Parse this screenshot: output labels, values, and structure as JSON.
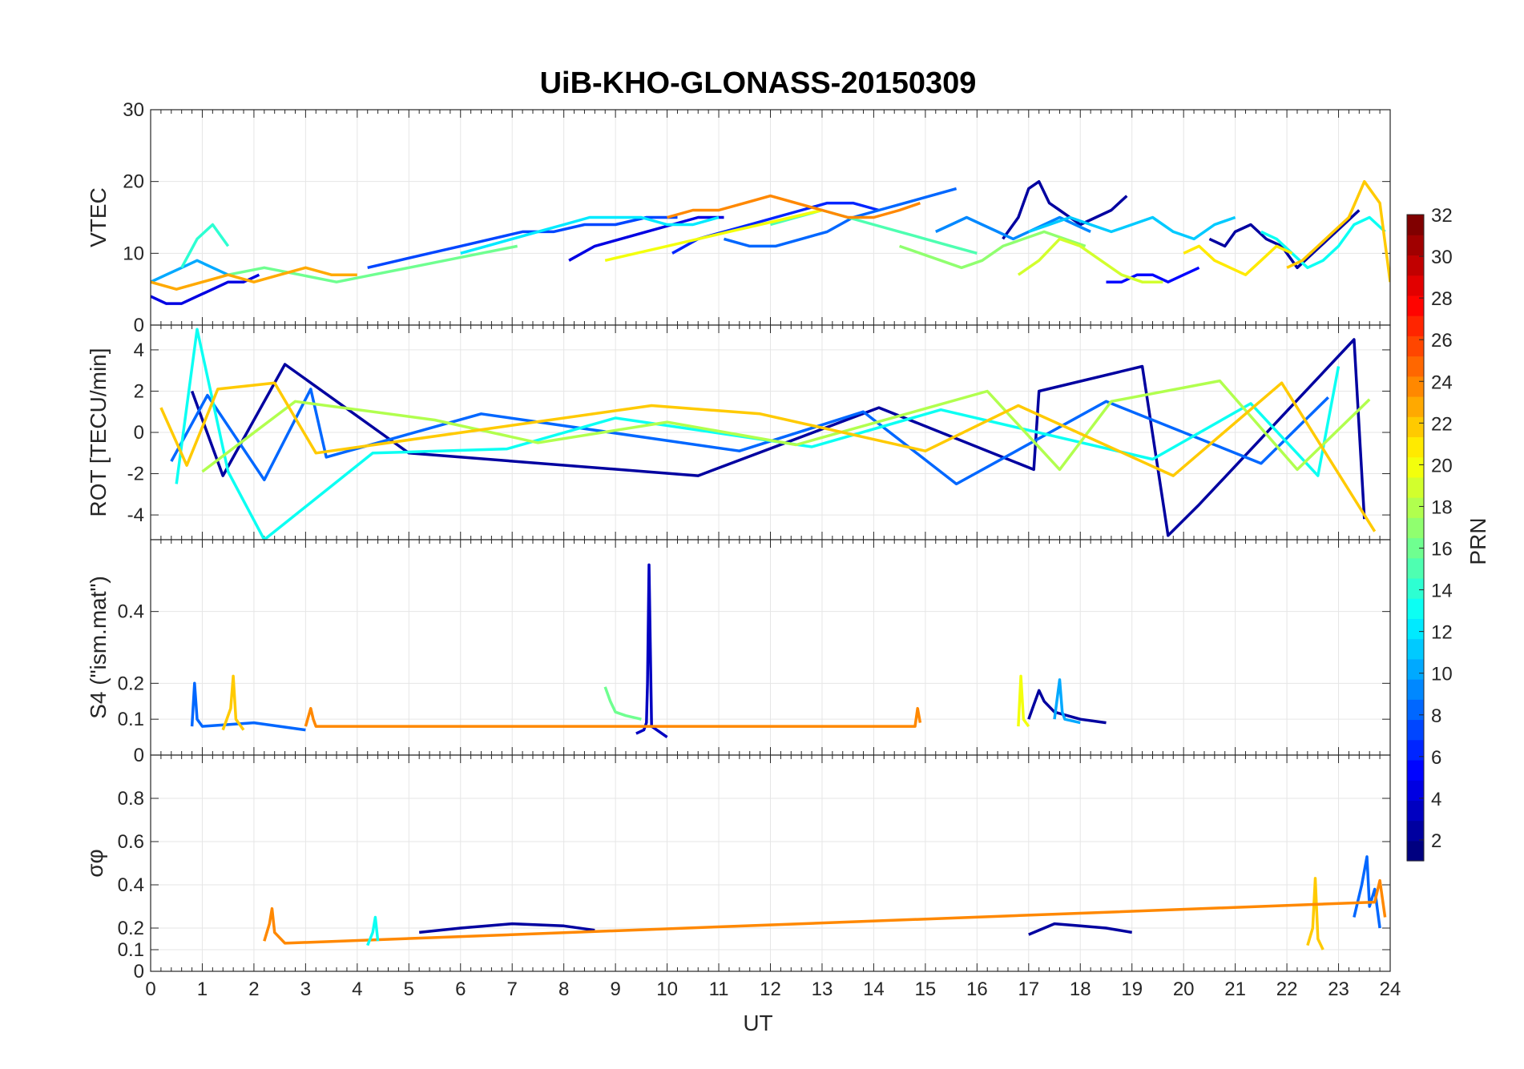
{
  "chart_data": {
    "type": "line",
    "title": "UiB-KHO-GLONASS-20150309",
    "xlabel": "UT",
    "xlim": [
      0,
      24
    ],
    "x_ticks": [
      "0",
      "1",
      "2",
      "3",
      "4",
      "5",
      "6",
      "7",
      "8",
      "9",
      "10",
      "11",
      "12",
      "13",
      "14",
      "15",
      "16",
      "17",
      "18",
      "19",
      "20",
      "21",
      "22",
      "23",
      "24"
    ],
    "grid": true,
    "colormap": "jet",
    "panels": [
      {
        "id": "vtec",
        "ylabel": "VTEC",
        "ylim": [
          0,
          30
        ],
        "y_ticks": [
          "0",
          "10",
          "20",
          "30"
        ],
        "series": [
          {
            "prn": 2,
            "x": [
              16.5,
              16.8,
              17.0,
              17.2,
              17.4,
              17.6,
              17.8,
              18.0,
              18.3,
              18.6,
              18.9
            ],
            "y": [
              12,
              15,
              19,
              20,
              17,
              16,
              15,
              14,
              15,
              16,
              18
            ]
          },
          {
            "prn": 2,
            "x": [
              20.5,
              20.8,
              21.0,
              21.3,
              21.6,
              21.9,
              22.2,
              22.5,
              22.8,
              23.1,
              23.4
            ],
            "y": [
              12,
              11,
              13,
              14,
              12,
              11,
              8,
              10,
              12,
              14,
              16
            ]
          },
          {
            "prn": 4,
            "x": [
              0,
              0.3,
              0.6,
              0.9,
              1.2,
              1.5,
              1.8,
              2.1
            ],
            "y": [
              4,
              3,
              3,
              4,
              5,
              6,
              6,
              7
            ]
          },
          {
            "prn": 4,
            "x": [
              8.1,
              8.6,
              9.1,
              9.6,
              10.1,
              10.6,
              11.1
            ],
            "y": [
              9,
              11,
              12,
              13,
              14,
              15,
              15
            ]
          },
          {
            "prn": 5,
            "x": [
              18.5,
              18.8,
              19.1,
              19.4,
              19.7,
              20.0,
              20.3
            ],
            "y": [
              6,
              6,
              7,
              7,
              6,
              7,
              8
            ]
          },
          {
            "prn": 6,
            "x": [
              10.1,
              10.6,
              11.1,
              11.6,
              12.1,
              12.6,
              13.1,
              13.6,
              14.1
            ],
            "y": [
              10,
              12,
              13,
              14,
              15,
              16,
              17,
              17,
              16
            ]
          },
          {
            "prn": 7,
            "x": [
              4.2,
              4.8,
              5.4,
              6.0,
              6.6,
              7.2,
              7.8,
              8.4,
              9.0,
              9.6,
              10.2
            ],
            "y": [
              8,
              9,
              10,
              11,
              12,
              13,
              13,
              14,
              14,
              15,
              15
            ]
          },
          {
            "prn": 8,
            "x": [
              11.1,
              11.6,
              12.1,
              12.6,
              13.1,
              13.6,
              14.1,
              14.6,
              15.1,
              15.6
            ],
            "y": [
              12,
              11,
              11,
              12,
              13,
              15,
              16,
              17,
              18,
              19
            ]
          },
          {
            "prn": 9,
            "x": [
              15.2,
              15.5,
              15.8,
              16.1,
              16.4,
              16.7,
              17.0,
              17.3,
              17.6,
              17.9,
              18.2
            ],
            "y": [
              13,
              14,
              15,
              14,
              13,
              12,
              13,
              14,
              15,
              14,
              13
            ]
          },
          {
            "prn": 10,
            "x": [
              0,
              0.3,
              0.6,
              0.9,
              1.2,
              1.5
            ],
            "y": [
              6,
              7,
              8,
              9,
              8,
              7
            ]
          },
          {
            "prn": 11,
            "x": [
              17.0,
              17.4,
              17.8,
              18.2,
              18.6,
              19.0,
              19.4,
              19.8,
              20.2,
              20.6,
              21.0
            ],
            "y": [
              13,
              14,
              15,
              14,
              13,
              14,
              15,
              13,
              12,
              14,
              15
            ]
          },
          {
            "prn": 12,
            "x": [
              6.0,
              6.5,
              7.0,
              7.5,
              8.0,
              8.5,
              9.0,
              9.5,
              10.0,
              10.5,
              11.0
            ],
            "y": [
              10,
              11,
              12,
              13,
              14,
              15,
              15,
              15,
              14,
              14,
              15
            ]
          },
          {
            "prn": 13,
            "x": [
              21.5,
              21.8,
              22.1,
              22.4,
              22.7,
              23.0,
              23.3,
              23.6,
              23.9
            ],
            "y": [
              13,
              12,
              10,
              8,
              9,
              11,
              14,
              15,
              13
            ]
          },
          {
            "prn": 14,
            "x": [
              0.6,
              0.9,
              1.2,
              1.5
            ],
            "y": [
              8,
              12,
              14,
              11
            ]
          },
          {
            "prn": 15,
            "x": [
              12.0,
              12.5,
              13.0,
              13.5,
              14.0,
              14.5,
              15.0,
              15.5,
              16.0
            ],
            "y": [
              14,
              15,
              16,
              15,
              14,
              13,
              12,
              11,
              10
            ]
          },
          {
            "prn": 16,
            "x": [
              1.5,
              2.2,
              2.9,
              3.6,
              4.3,
              5.0,
              5.7,
              6.4,
              7.1
            ],
            "y": [
              7,
              8,
              7,
              6,
              7,
              8,
              9,
              10,
              11
            ]
          },
          {
            "prn": 17,
            "x": [
              14.5,
              14.9,
              15.3,
              15.7,
              16.1,
              16.5,
              16.9,
              17.3,
              17.7,
              18.1
            ],
            "y": [
              11,
              10,
              9,
              8,
              9,
              11,
              12,
              13,
              12,
              11
            ]
          },
          {
            "prn": 19,
            "x": [
              16.8,
              17.2,
              17.6,
              18.0,
              18.4,
              18.8,
              19.2,
              19.6
            ],
            "y": [
              7,
              9,
              12,
              11,
              9,
              7,
              6,
              6
            ]
          },
          {
            "prn": 20,
            "x": [
              8.8,
              9.4,
              10.0,
              10.6,
              11.2,
              11.8,
              12.4,
              13.0
            ],
            "y": [
              9,
              10,
              11,
              12,
              13,
              14,
              15,
              16
            ]
          },
          {
            "prn": 21,
            "x": [
              20.0,
              20.3,
              20.6,
              20.9,
              21.2,
              21.5,
              21.8,
              22.1
            ],
            "y": [
              10,
              11,
              9,
              8,
              7,
              9,
              11,
              10
            ]
          },
          {
            "prn": 22,
            "x": [
              22.0,
              22.3,
              22.6,
              22.9,
              23.2,
              23.5,
              23.8,
              24.0
            ],
            "y": [
              8,
              9,
              11,
              13,
              15,
              20,
              17,
              6
            ]
          },
          {
            "prn": 23,
            "x": [
              0,
              0.5,
              1.0,
              1.5,
              2.0,
              2.5,
              3.0,
              3.5,
              4.0
            ],
            "y": [
              6,
              5,
              6,
              7,
              6,
              7,
              8,
              7,
              7
            ]
          },
          {
            "prn": 24,
            "x": [
              10.0,
              10.5,
              11.0,
              11.5,
              12.0,
              12.5,
              13.0,
              13.5,
              14.0,
              14.5,
              14.9
            ],
            "y": [
              15,
              16,
              16,
              17,
              18,
              17,
              16,
              15,
              15,
              16,
              17
            ]
          }
        ]
      },
      {
        "id": "rot",
        "ylabel": "ROT [TECU/min]",
        "ylim": [
          -5.2,
          5.2
        ],
        "y_ticks": [
          "-4",
          "-2",
          "0",
          "2",
          "4"
        ],
        "series": [
          {
            "prn": 2,
            "x": [
              0.8,
              1.4,
              2.6,
              5.0,
              10.6,
              14.1,
              17.1,
              17.2,
              19.2,
              19.7,
              20.3,
              23.3,
              23.5
            ],
            "y": [
              2.0,
              -2.1,
              3.3,
              -1.0,
              -2.1,
              1.2,
              -1.8,
              2.0,
              3.2,
              -5.0,
              -3.5,
              4.5,
              -4.2
            ]
          },
          {
            "prn": 8,
            "x": [
              0.4,
              1.1,
              2.2,
              3.1,
              3.4,
              6.4,
              11.4,
              13.8,
              15.6,
              18.5,
              21.5,
              22.8
            ],
            "y": [
              -1.4,
              1.8,
              -2.3,
              2.1,
              -1.2,
              0.9,
              -0.9,
              1.0,
              -2.5,
              1.5,
              -1.5,
              1.7
            ]
          },
          {
            "prn": 13,
            "x": [
              0.5,
              0.9,
              1.5,
              2.2,
              4.3,
              6.9,
              9.0,
              12.8,
              15.3,
              19.4,
              21.3,
              22.6,
              23.0
            ],
            "y": [
              -2.5,
              5.0,
              -1.9,
              -5.2,
              -1.0,
              -0.8,
              0.7,
              -0.7,
              1.1,
              -1.3,
              1.4,
              -2.1,
              3.2
            ]
          },
          {
            "prn": 18,
            "x": [
              1.0,
              2.8,
              5.5,
              7.5,
              10.0,
              12.5,
              16.2,
              17.6,
              18.6,
              20.7,
              22.2,
              23.6
            ],
            "y": [
              -1.9,
              1.5,
              0.6,
              -0.5,
              0.5,
              -0.6,
              2.0,
              -1.8,
              1.5,
              2.5,
              -1.8,
              1.6
            ]
          },
          {
            "prn": 22,
            "x": [
              0.2,
              0.7,
              1.3,
              2.4,
              3.2,
              9.7,
              11.8,
              15.0,
              16.8,
              19.8,
              21.9,
              23.7
            ],
            "y": [
              1.2,
              -1.6,
              2.1,
              2.4,
              -1.0,
              1.3,
              0.9,
              -0.9,
              1.3,
              -2.1,
              2.4,
              -4.8
            ]
          }
        ]
      },
      {
        "id": "s4",
        "ylabel": "S4 (\"ism.mat\")",
        "ylim": [
          0,
          0.6
        ],
        "y_ticks": [
          "0",
          "0.1",
          "0.2",
          "0.4"
        ],
        "series": [
          {
            "prn": 3,
            "x": [
              9.4,
              9.55,
              9.6,
              9.62,
              9.65,
              9.7,
              10.0
            ],
            "y": [
              0.06,
              0.07,
              0.09,
              0.2,
              0.53,
              0.08,
              0.05
            ]
          },
          {
            "prn": 2,
            "x": [
              17.0,
              17.1,
              17.2,
              17.3,
              17.5,
              18.0,
              18.5
            ],
            "y": [
              0.1,
              0.14,
              0.18,
              0.15,
              0.12,
              0.1,
              0.09
            ]
          },
          {
            "prn": 8,
            "x": [
              0.8,
              0.85,
              0.9,
              1.0,
              2.0,
              3.0
            ],
            "y": [
              0.08,
              0.2,
              0.1,
              0.08,
              0.09,
              0.07
            ]
          },
          {
            "prn": 10,
            "x": [
              17.5,
              17.6,
              17.65,
              17.7,
              18.0
            ],
            "y": [
              0.1,
              0.21,
              0.12,
              0.1,
              0.09
            ]
          },
          {
            "prn": 16,
            "x": [
              8.8,
              8.9,
              9.0,
              9.2,
              9.5
            ],
            "y": [
              0.19,
              0.15,
              0.12,
              0.11,
              0.1
            ]
          },
          {
            "prn": 20,
            "x": [
              16.8,
              16.85,
              16.9,
              17.0
            ],
            "y": [
              0.08,
              0.22,
              0.1,
              0.08
            ]
          },
          {
            "prn": 22,
            "x": [
              1.4,
              1.55,
              1.6,
              1.65,
              1.8
            ],
            "y": [
              0.07,
              0.13,
              0.22,
              0.1,
              0.07
            ]
          },
          {
            "prn": 24,
            "x": [
              3.0,
              3.1,
              3.15,
              3.2,
              14.8,
              14.85,
              14.9
            ],
            "y": [
              0.08,
              0.13,
              0.1,
              0.08,
              0.08,
              0.13,
              0.09
            ]
          }
        ]
      },
      {
        "id": "sigma_phi",
        "ylabel": "σφ",
        "ylim": [
          0,
          1
        ],
        "y_ticks": [
          "0",
          "0.1",
          "0.2",
          "0.4",
          "0.6",
          "0.8"
        ],
        "series": [
          {
            "prn": 2,
            "x": [
              5.2,
              6.0,
              7.0,
              8.0,
              8.6
            ],
            "y": [
              0.18,
              0.2,
              0.22,
              0.21,
              0.19
            ]
          },
          {
            "prn": 2,
            "x": [
              17.0,
              17.5,
              18.0,
              18.5,
              19.0
            ],
            "y": [
              0.17,
              0.22,
              0.21,
              0.2,
              0.18
            ]
          },
          {
            "prn": 8,
            "x": [
              23.3,
              23.45,
              23.55,
              23.6,
              23.7,
              23.8
            ],
            "y": [
              0.25,
              0.4,
              0.53,
              0.3,
              0.38,
              0.2
            ]
          },
          {
            "prn": 22,
            "x": [
              22.4,
              22.5,
              22.55,
              22.6,
              22.7
            ],
            "y": [
              0.12,
              0.2,
              0.43,
              0.15,
              0.1
            ]
          },
          {
            "prn": 24,
            "x": [
              2.2,
              2.3,
              2.35,
              2.4,
              2.6,
              23.7,
              23.8,
              23.9
            ],
            "y": [
              0.14,
              0.22,
              0.29,
              0.18,
              0.13,
              0.32,
              0.42,
              0.25
            ]
          },
          {
            "prn": 13,
            "x": [
              4.2,
              4.3,
              4.35,
              4.4
            ],
            "y": [
              0.12,
              0.18,
              0.25,
              0.14
            ]
          }
        ]
      }
    ],
    "colorbar": {
      "label": "PRN",
      "range": [
        1,
        32
      ],
      "ticks": [
        "2",
        "4",
        "6",
        "8",
        "10",
        "12",
        "14",
        "16",
        "18",
        "20",
        "22",
        "24",
        "26",
        "28",
        "30",
        "32"
      ]
    }
  }
}
